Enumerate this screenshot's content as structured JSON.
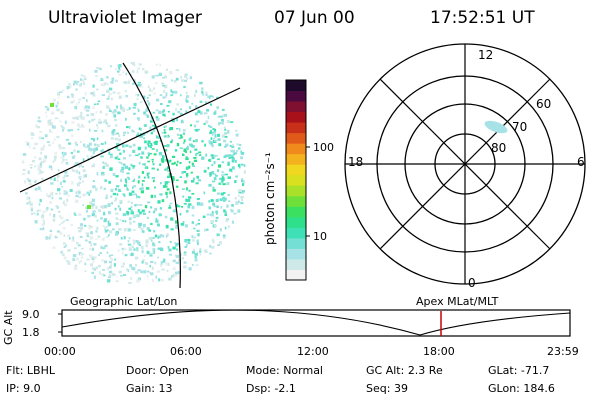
{
  "header": {
    "instrument": "Ultraviolet Imager",
    "date": "07 Jun 00",
    "time": "17:52:51 UT"
  },
  "colorbar": {
    "unit_label": "photon cm⁻²s⁻¹",
    "ticks": [
      "100",
      "10"
    ],
    "colors": [
      "#f2f2f2",
      "#cfe8e8",
      "#a7e3e6",
      "#74e0d5",
      "#3fe0b5",
      "#2fe08a",
      "#3ce060",
      "#6fe03a",
      "#a8e02a",
      "#d8e020",
      "#f0d820",
      "#f3b21e",
      "#f08a1d",
      "#e05a1a",
      "#c8301a",
      "#a8101a",
      "#801030",
      "#4a0a40",
      "#1e0a2a"
    ]
  },
  "map_labels": {
    "left_caption": "Geographic Lat/Lon",
    "right_caption": "Apex MLat/MLT"
  },
  "polar_plot": {
    "mlt_labels": {
      "top": "12",
      "bottom": "0",
      "left": "18",
      "right": "6"
    },
    "lat_labels": [
      "60",
      "70",
      "80"
    ],
    "aurora_color": "#a7e3e6"
  },
  "altitude_plot": {
    "ylabel": "GC Alt",
    "yticks": [
      "9.0",
      "1.8"
    ],
    "xticks": [
      "00:00",
      "06:00",
      "12:00",
      "18:00",
      "23:59"
    ],
    "marker_time": "17:53",
    "marker_color": "#cc0000"
  },
  "info": {
    "row1": {
      "flt_label": "Flt:",
      "flt_value": "LBHL",
      "door_label": "Door:",
      "door_value": "Open",
      "mode_label": "Mode:",
      "mode_value": "Normal",
      "gcalt_label": "GC Alt:",
      "gcalt_value": "2.3 Re",
      "glat_label": "GLat:",
      "glat_value": "-71.7"
    },
    "row2": {
      "ip_label": "IP:",
      "ip_value": "9.0",
      "gain_label": "Gain:",
      "gain_value": "13",
      "dsp_label": "Dsp:",
      "dsp_value": "-2.1",
      "seq_label": "Seq:",
      "seq_value": "39",
      "glon_label": "GLon:",
      "glon_value": "184.6"
    }
  }
}
